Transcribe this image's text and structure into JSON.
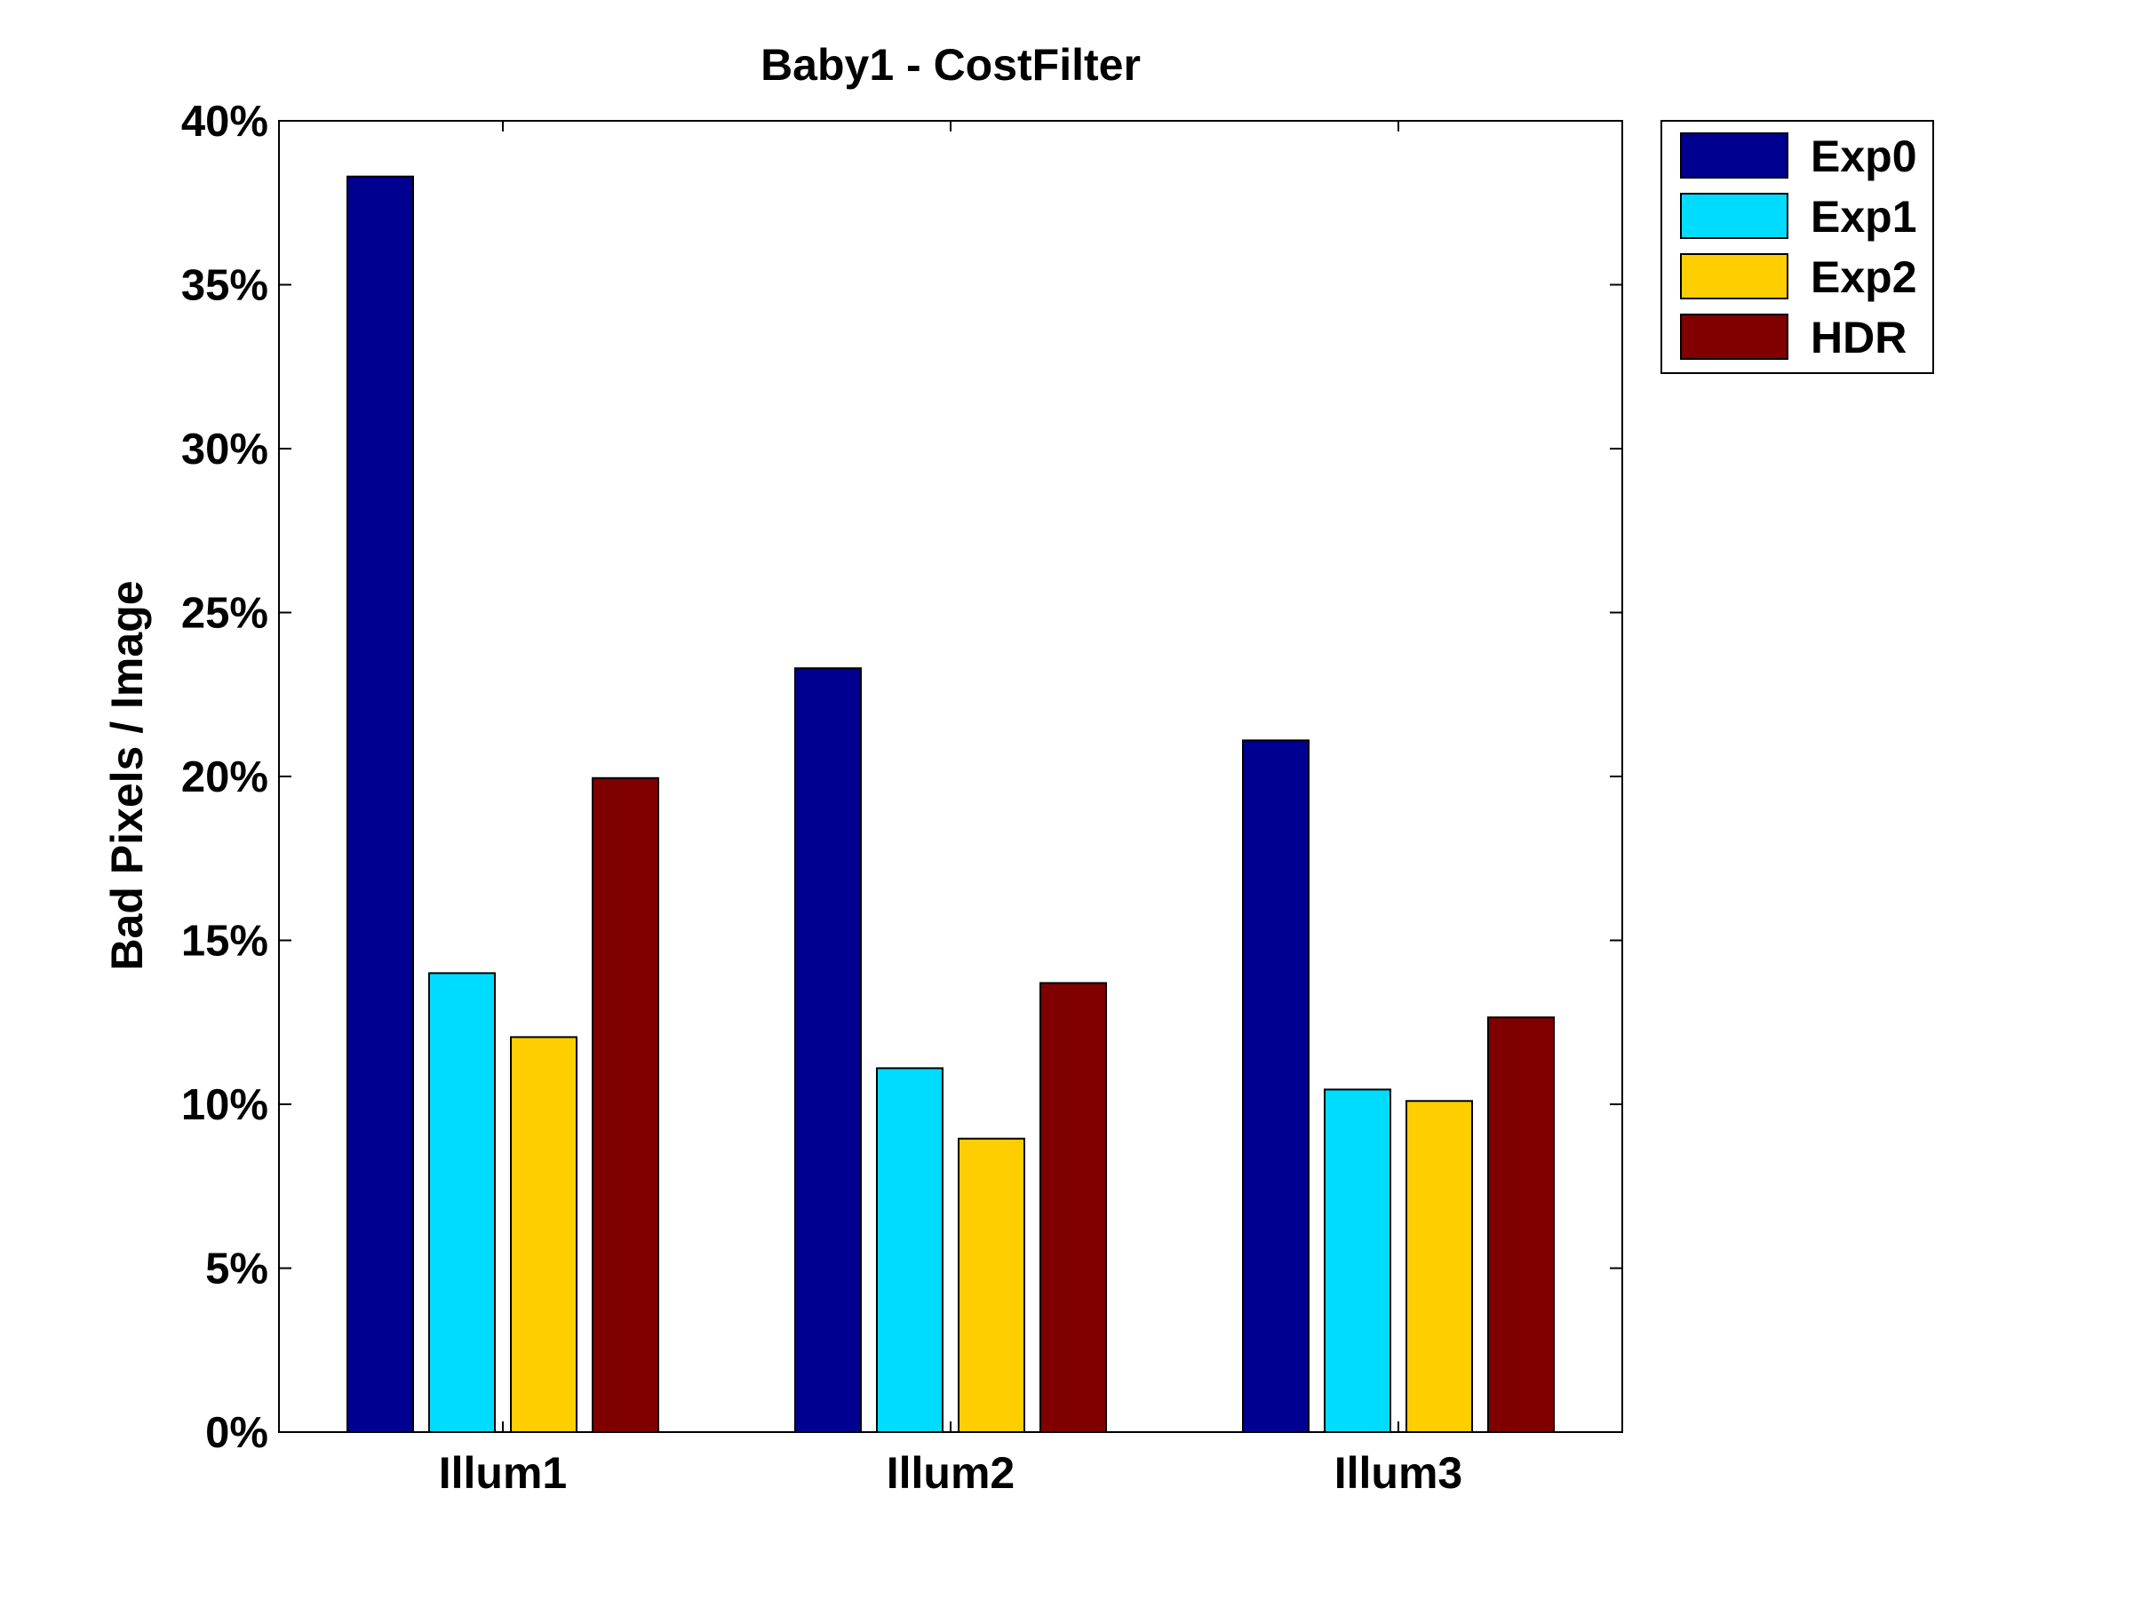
{
  "chart_data": {
    "type": "bar",
    "title": "Baby1 - CostFilter",
    "xlabel": "",
    "ylabel": "Bad Pixels / Image",
    "categories": [
      "Illum1",
      "Illum2",
      "Illum3"
    ],
    "ylim": [
      0,
      40
    ],
    "yticks": [
      0,
      5,
      10,
      15,
      20,
      25,
      30,
      35,
      40
    ],
    "ytick_labels": [
      "0%",
      "5%",
      "10%",
      "15%",
      "20%",
      "25%",
      "30%",
      "35%",
      "40%"
    ],
    "legend_position": "outside-top-right",
    "grid": false,
    "series": [
      {
        "name": "Exp0",
        "color": "#000090",
        "values": [
          38.3,
          23.3,
          21.1
        ]
      },
      {
        "name": "Exp1",
        "color": "#00dcff",
        "values": [
          14.0,
          11.1,
          10.45
        ]
      },
      {
        "name": "Exp2",
        "color": "#ffce00",
        "values": [
          12.05,
          8.95,
          10.1
        ]
      },
      {
        "name": "HDR",
        "color": "#800000",
        "values": [
          19.95,
          13.7,
          12.65
        ]
      }
    ]
  }
}
